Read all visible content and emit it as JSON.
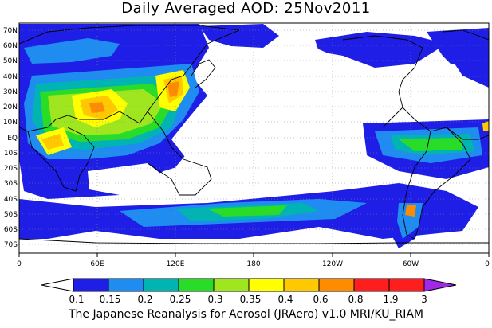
{
  "title": "Daily Averaged AOD: 25Nov2011",
  "credit": "The Japanese Reanalysis for Aerosol (JRAero) v1.0 MRI/KU_RIAM",
  "map": {
    "lat_labels": [
      "70N",
      "60N",
      "50N",
      "40N",
      "30N",
      "20N",
      "10N",
      "EQ",
      "10S",
      "20S",
      "30S",
      "40S",
      "50S",
      "60S",
      "70S"
    ],
    "lon_labels": [
      "0",
      "60E",
      "120E",
      "180",
      "120W",
      "60W",
      "0"
    ],
    "lon_range": [
      0,
      360
    ],
    "lat_range": [
      -75,
      75
    ],
    "gridlines": "dotted"
  },
  "legend": {
    "labels": [
      "0.1",
      "0.15",
      "0.2",
      "0.25",
      "0.3",
      "0.35",
      "0.4",
      "0.6",
      "0.8",
      "1.9",
      "3"
    ],
    "colors": [
      "#ffffff",
      "#1e1ee6",
      "#1e8cf0",
      "#00b4b4",
      "#28dc28",
      "#a0e61e",
      "#ffff00",
      "#ffc800",
      "#ff8c00",
      "#ff1e1e",
      "#a028e6"
    ]
  }
}
